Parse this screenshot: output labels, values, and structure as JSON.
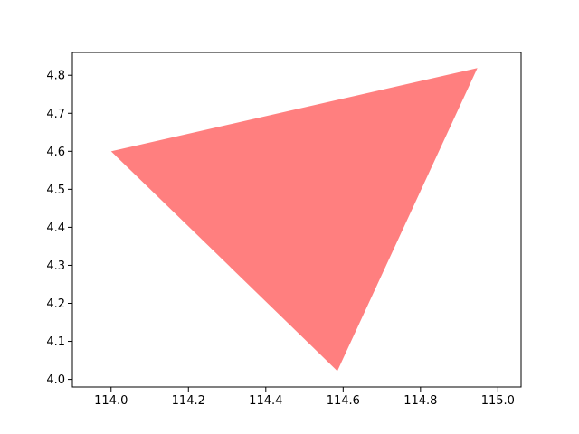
{
  "chart_data": {
    "type": "area",
    "shape": "polygon",
    "polygon": [
      {
        "x": 114.0,
        "y": 4.6
      },
      {
        "x": 114.947,
        "y": 4.819
      },
      {
        "x": 114.585,
        "y": 4.022
      }
    ],
    "fill_color": "#ff7f7f",
    "xlim": [
      113.9,
      115.06
    ],
    "ylim": [
      3.98,
      4.86
    ],
    "x_ticks": [
      {
        "value": 114.0,
        "label": "114.0"
      },
      {
        "value": 114.2,
        "label": "114.2"
      },
      {
        "value": 114.4,
        "label": "114.4"
      },
      {
        "value": 114.6,
        "label": "114.6"
      },
      {
        "value": 114.8,
        "label": "114.8"
      },
      {
        "value": 115.0,
        "label": "115.0"
      }
    ],
    "y_ticks": [
      {
        "value": 4.0,
        "label": "4.0"
      },
      {
        "value": 4.1,
        "label": "4.1"
      },
      {
        "value": 4.2,
        "label": "4.2"
      },
      {
        "value": 4.3,
        "label": "4.3"
      },
      {
        "value": 4.4,
        "label": "4.4"
      },
      {
        "value": 4.5,
        "label": "4.5"
      },
      {
        "value": 4.6,
        "label": "4.6"
      },
      {
        "value": 4.7,
        "label": "4.7"
      },
      {
        "value": 4.8,
        "label": "4.8"
      }
    ],
    "grid": false,
    "title": "",
    "xlabel": "",
    "ylabel": ""
  }
}
